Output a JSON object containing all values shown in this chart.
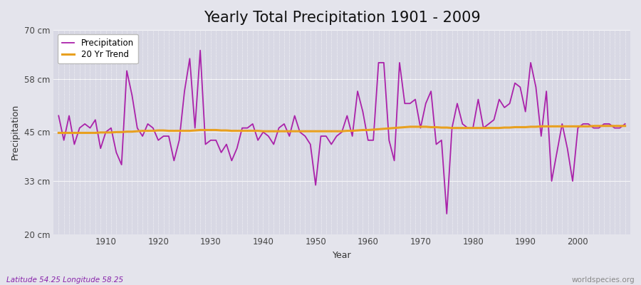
{
  "title": "Yearly Total Precipitation 1901 - 2009",
  "xlabel": "Year",
  "ylabel": "Precipitation",
  "subtitle_left": "Latitude 54.25 Longitude 58.25",
  "subtitle_right": "worldspecies.org",
  "years": [
    1901,
    1902,
    1903,
    1904,
    1905,
    1906,
    1907,
    1908,
    1909,
    1910,
    1911,
    1912,
    1913,
    1914,
    1915,
    1916,
    1917,
    1918,
    1919,
    1920,
    1921,
    1922,
    1923,
    1924,
    1925,
    1926,
    1927,
    1928,
    1929,
    1930,
    1931,
    1932,
    1933,
    1934,
    1935,
    1936,
    1937,
    1938,
    1939,
    1940,
    1941,
    1942,
    1943,
    1944,
    1945,
    1946,
    1947,
    1948,
    1949,
    1950,
    1951,
    1952,
    1953,
    1954,
    1955,
    1956,
    1957,
    1958,
    1959,
    1960,
    1961,
    1962,
    1963,
    1964,
    1965,
    1966,
    1967,
    1968,
    1969,
    1970,
    1971,
    1972,
    1973,
    1974,
    1975,
    1976,
    1977,
    1978,
    1979,
    1980,
    1981,
    1982,
    1983,
    1984,
    1985,
    1986,
    1987,
    1988,
    1989,
    1990,
    1991,
    1992,
    1993,
    1994,
    1995,
    1996,
    1997,
    1998,
    1999,
    2000,
    2001,
    2002,
    2003,
    2004,
    2005,
    2006,
    2007,
    2008,
    2009
  ],
  "precip": [
    49,
    43,
    49,
    42,
    46,
    47,
    46,
    48,
    41,
    45,
    46,
    40,
    37,
    60,
    54,
    46,
    44,
    47,
    46,
    43,
    44,
    44,
    38,
    43,
    55,
    63,
    46,
    65,
    42,
    43,
    43,
    40,
    42,
    38,
    41,
    46,
    46,
    47,
    43,
    45,
    44,
    42,
    46,
    47,
    44,
    49,
    45,
    44,
    42,
    32,
    44,
    44,
    42,
    44,
    45,
    49,
    44,
    55,
    50,
    43,
    43,
    62,
    62,
    43,
    38,
    62,
    52,
    52,
    53,
    46,
    52,
    55,
    42,
    43,
    25,
    46,
    52,
    47,
    46,
    46,
    53,
    46,
    47,
    48,
    53,
    51,
    52,
    57,
    56,
    50,
    62,
    56,
    44,
    55,
    33,
    40,
    47,
    41,
    33,
    46,
    47,
    47,
    46,
    46,
    47,
    47,
    46,
    46,
    47
  ],
  "trend": [
    44.8,
    44.8,
    44.8,
    44.8,
    44.8,
    44.8,
    44.8,
    44.8,
    44.9,
    44.9,
    44.9,
    45.0,
    45.0,
    45.1,
    45.1,
    45.2,
    45.3,
    45.3,
    45.3,
    45.4,
    45.4,
    45.3,
    45.3,
    45.3,
    45.3,
    45.3,
    45.4,
    45.5,
    45.5,
    45.5,
    45.5,
    45.4,
    45.4,
    45.3,
    45.3,
    45.3,
    45.3,
    45.3,
    45.3,
    45.2,
    45.2,
    45.2,
    45.2,
    45.2,
    45.2,
    45.2,
    45.2,
    45.2,
    45.2,
    45.2,
    45.2,
    45.2,
    45.2,
    45.2,
    45.2,
    45.3,
    45.3,
    45.4,
    45.5,
    45.5,
    45.6,
    45.7,
    45.8,
    45.9,
    46.0,
    46.1,
    46.2,
    46.3,
    46.3,
    46.3,
    46.3,
    46.2,
    46.2,
    46.1,
    46.1,
    46.0,
    46.0,
    46.0,
    46.0,
    46.0,
    46.0,
    46.0,
    46.0,
    46.0,
    46.0,
    46.1,
    46.1,
    46.2,
    46.2,
    46.2,
    46.3,
    46.3,
    46.4,
    46.4,
    46.4,
    46.4,
    46.4,
    46.4,
    46.4,
    46.4,
    46.4,
    46.4,
    46.5,
    46.5,
    46.5,
    46.5,
    46.5,
    46.5,
    46.5
  ],
  "precip_color": "#AA22AA",
  "trend_color": "#E8A020",
  "bg_color": "#E4E4EC",
  "plot_bg_color": "#D8D8E4",
  "ylim": [
    20,
    70
  ],
  "yticks": [
    20,
    33,
    45,
    58,
    70
  ],
  "ytick_labels": [
    "20 cm",
    "33 cm",
    "45 cm",
    "58 cm",
    "70 cm"
  ],
  "xticks": [
    1910,
    1920,
    1930,
    1940,
    1950,
    1960,
    1970,
    1980,
    1990,
    2000
  ],
  "title_fontsize": 15,
  "label_fontsize": 9,
  "tick_fontsize": 8.5,
  "legend_precip": "Precipitation",
  "legend_trend": "20 Yr Trend"
}
